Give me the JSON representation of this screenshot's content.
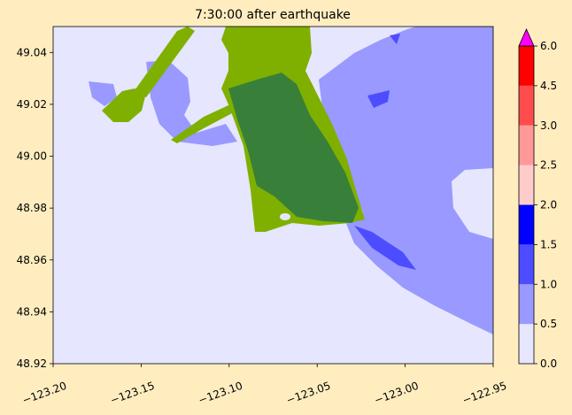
{
  "chart_data": {
    "type": "map",
    "title": "7:30:00 after earthquake",
    "xlim": [
      -123.2,
      -122.95
    ],
    "xticks": [
      {
        "value": -123.2,
        "label": "−123.20"
      },
      {
        "value": -123.15,
        "label": "−123.15"
      },
      {
        "value": -123.1,
        "label": "−123.10"
      },
      {
        "value": -123.05,
        "label": "−123.05"
      },
      {
        "value": -123.0,
        "label": "−123.00"
      },
      {
        "value": -122.95,
        "label": "−122.95"
      }
    ],
    "ylim": [
      48.92,
      49.05
    ],
    "yticks": [
      48.92,
      48.94,
      48.96,
      48.98,
      {
        "value": 49.0,
        "label": "49.00"
      },
      49.02,
      49.04
    ],
    "colorbar": {
      "ticks": [
        {
          "value": 0,
          "label": "0.0"
        },
        0.5,
        {
          "value": 1,
          "label": "1.0"
        },
        1.5,
        {
          "value": 2,
          "label": "2.0"
        },
        2.5,
        {
          "value": 3,
          "label": "3.0"
        },
        4.5,
        {
          "value": 6,
          "label": "6.0"
        }
      ],
      "colors": [
        "#e6e6ff",
        "#9999ff",
        "#4d4dff",
        "#0000ff",
        "#ffcccc",
        "#ff9999",
        "#ff4d4d",
        "#ff0000"
      ],
      "extend_color": "#ff00ff"
    }
  }
}
